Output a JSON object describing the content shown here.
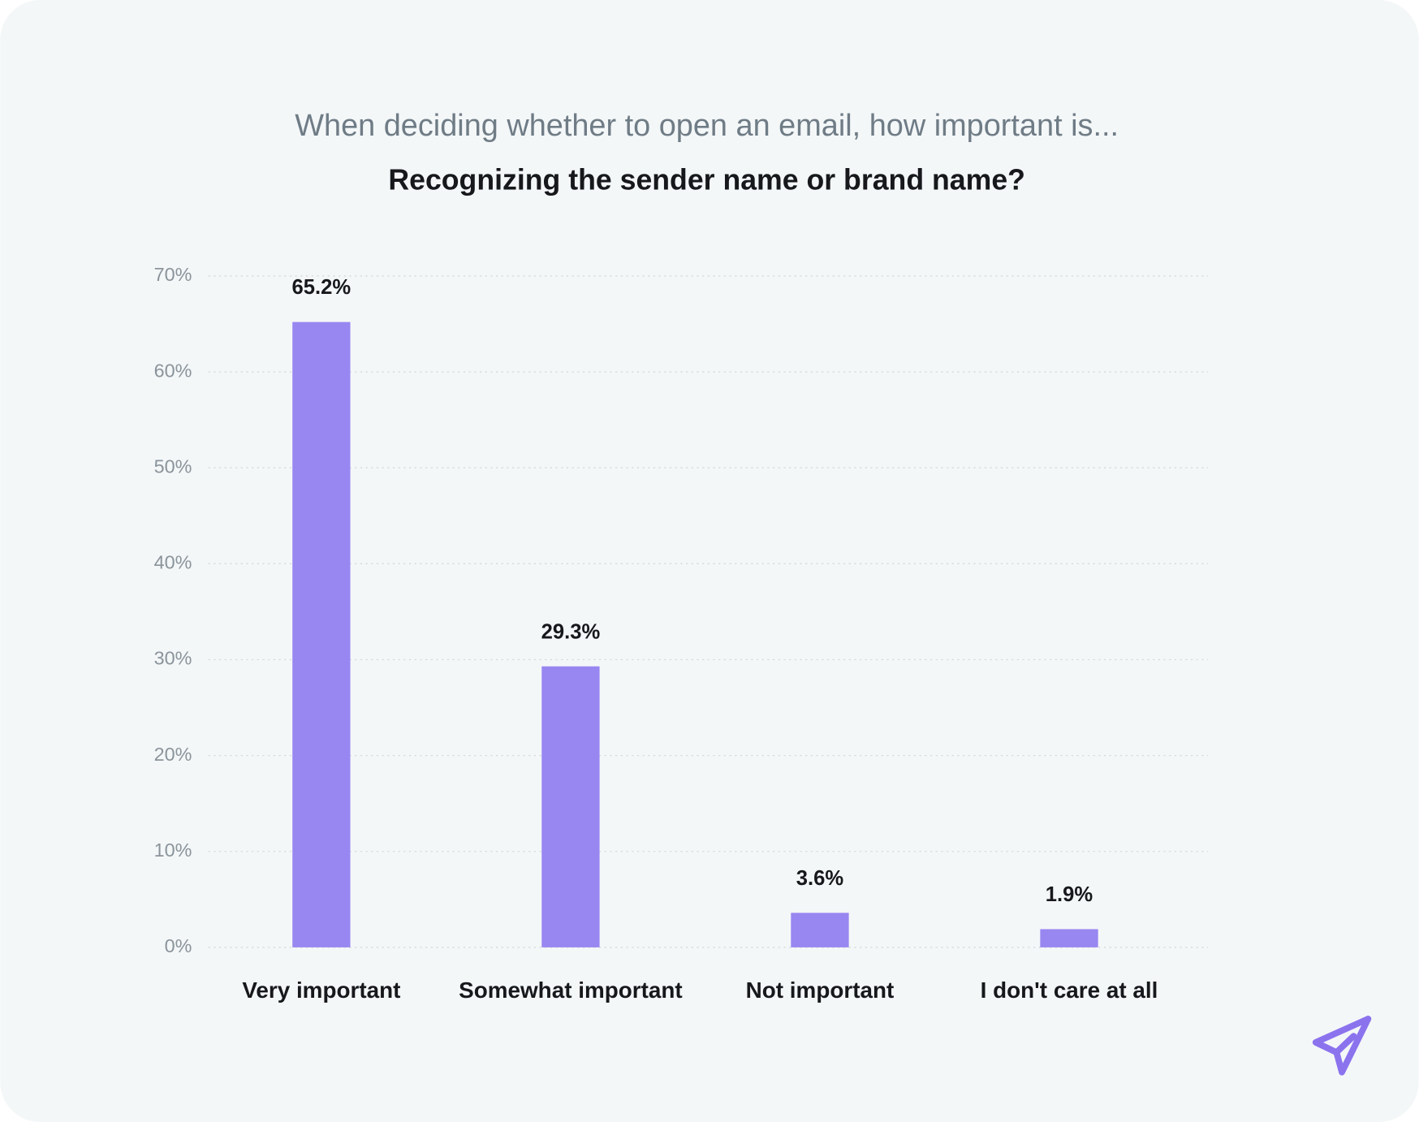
{
  "chart_data": {
    "type": "bar",
    "subtitle": "When deciding whether to open an email, how important is...",
    "title": "Recognizing the sender name or brand name?",
    "categories": [
      "Very important",
      "Somewhat important",
      "Not important",
      "I don't care at all"
    ],
    "values": [
      65.2,
      29.3,
      3.6,
      1.9
    ],
    "value_labels": [
      "65.2%",
      "29.3%",
      "3.6%",
      "1.9%"
    ],
    "color": "#9887f1",
    "ylim": [
      0,
      70
    ],
    "yticks": [
      {
        "value": 0,
        "label": "0%"
      },
      {
        "value": 10,
        "label": "10%"
      },
      {
        "value": 20,
        "label": "20%"
      },
      {
        "value": 30,
        "label": "30%"
      },
      {
        "value": 40,
        "label": "40%"
      },
      {
        "value": 50,
        "label": "50%"
      },
      {
        "value": 60,
        "label": "60%"
      },
      {
        "value": 70,
        "label": "70%"
      }
    ],
    "grid": true
  }
}
